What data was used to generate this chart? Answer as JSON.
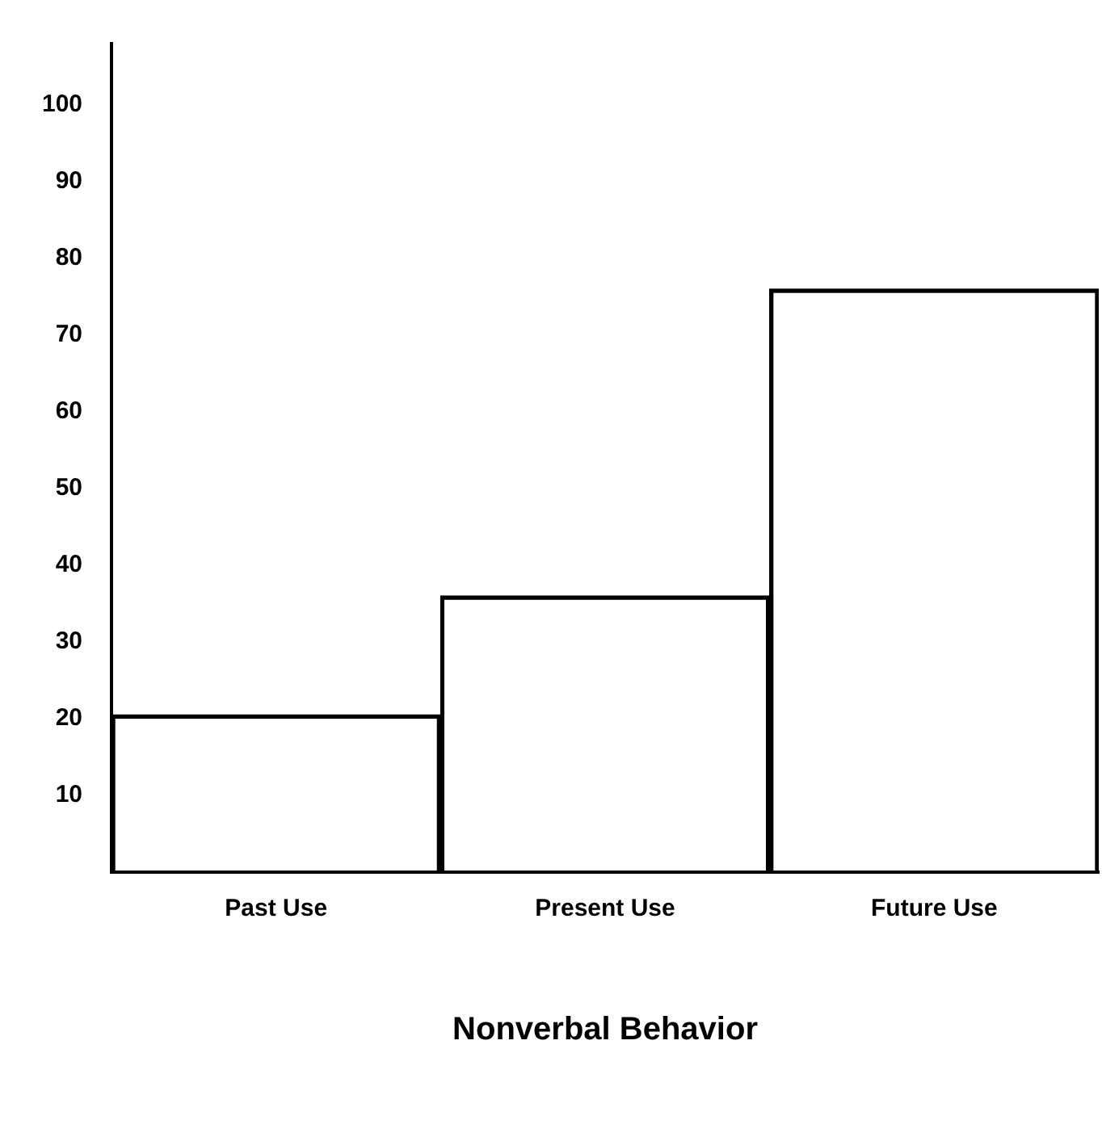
{
  "chart_data": {
    "type": "bar",
    "xlabel": "Nonverbal Behavior",
    "categories": [
      "Past Use",
      "Present Use",
      "Future Use"
    ],
    "values": [
      20.5,
      36,
      76
    ],
    "color": "#000000",
    "ylim": [
      0,
      108
    ],
    "yticks": [
      10,
      20,
      30,
      40,
      50,
      60,
      70,
      80,
      90,
      100
    ],
    "grid": false,
    "legend": false
  }
}
